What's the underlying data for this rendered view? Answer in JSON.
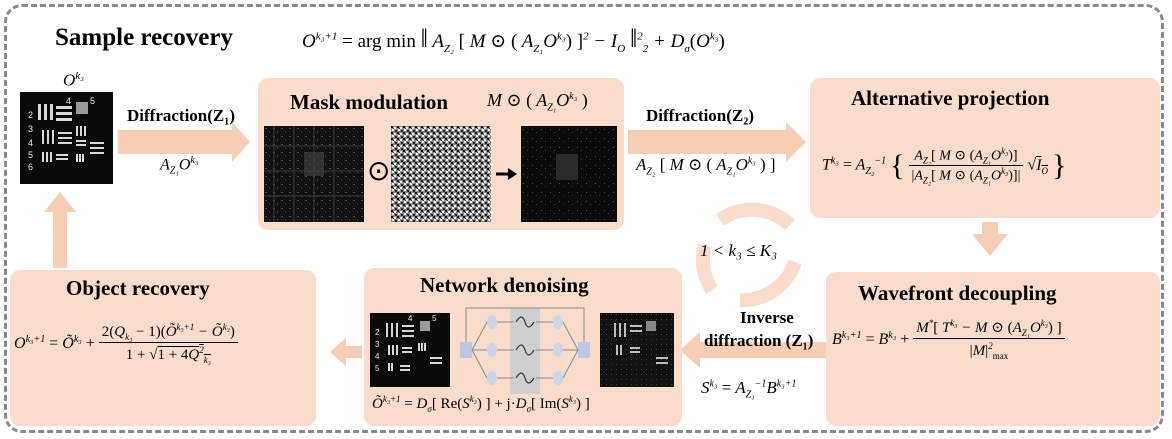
{
  "title": "Sample recovery",
  "top_equation": "O^{k3+1} = arg min ‖ |A_{Z2}[M ⊙ (A_{Z1} O^{k3})]|² − I_O ‖₂² + D_σ(O^{k3})",
  "sample_image_label": "O^{k3}",
  "diffraction1": {
    "label": "Diffraction(Z₁)",
    "expr": "A_{Z1} O^{k3}"
  },
  "mask_modulation": {
    "title": "Mask modulation",
    "expr": "M ⊙ (A_{Z1} O^{k3})",
    "odot": "⊙"
  },
  "diffraction2": {
    "label": "Diffraction(Z₂)",
    "expr": "A_{Z2}[M ⊙ (A_{Z1} O^{k3})]"
  },
  "alternative_projection": {
    "title": "Alternative projection",
    "equation": "T^{k3} = A_{Z2}^{-1} { A_{Z2}[M ⊙ (A_{Z1}O^{k3})] / |A_{Z2}[M ⊙ (A_{Z1}O^{k3})]| · √I_O }"
  },
  "loop_condition": "1 < k₃ ≤ K₃",
  "wavefront_decoupling": {
    "title": "Wavefront decoupling",
    "equation": "B^{k3+1} = B^{k3} + M*[T^{k3} − M ⊙ (A_{Z1}O^{k3})] / |M|²max"
  },
  "inverse_diffraction": {
    "label_line1": "Inverse",
    "label_line2": "diffraction (Z₁)",
    "expr": "S^{k3} = A_{Z1}^{-1} B^{k3+1}"
  },
  "network_denoising": {
    "title": "Network denoising",
    "equation": "Õ^{k3+1} = D_σ[Re(S^{k3})] + j·D_σ[Im(S^{k3})]"
  },
  "object_recovery": {
    "title": "Object recovery",
    "equation": "O^{k3+1} = Õ^{k3} + 2(Q_{k3} − 1)(Õ^{k3+1} − Õ^{k3}) / (1 + √(1 + 4Q²_{k3}))"
  },
  "colors": {
    "panel": "#f9dccb",
    "arrow": "#f6cdb5",
    "frame": "#8a8a8a"
  }
}
